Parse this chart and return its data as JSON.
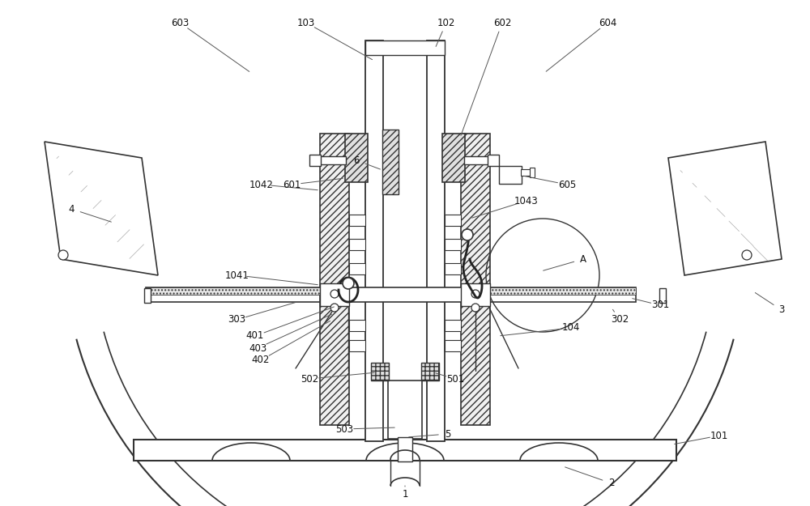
{
  "bg_color": "#ffffff",
  "lc": "#444444",
  "dk": "#333333",
  "label_fontsize": 8.5,
  "label_color": "#111111",
  "figsize": [
    10.0,
    6.25
  ],
  "dpi": 100
}
